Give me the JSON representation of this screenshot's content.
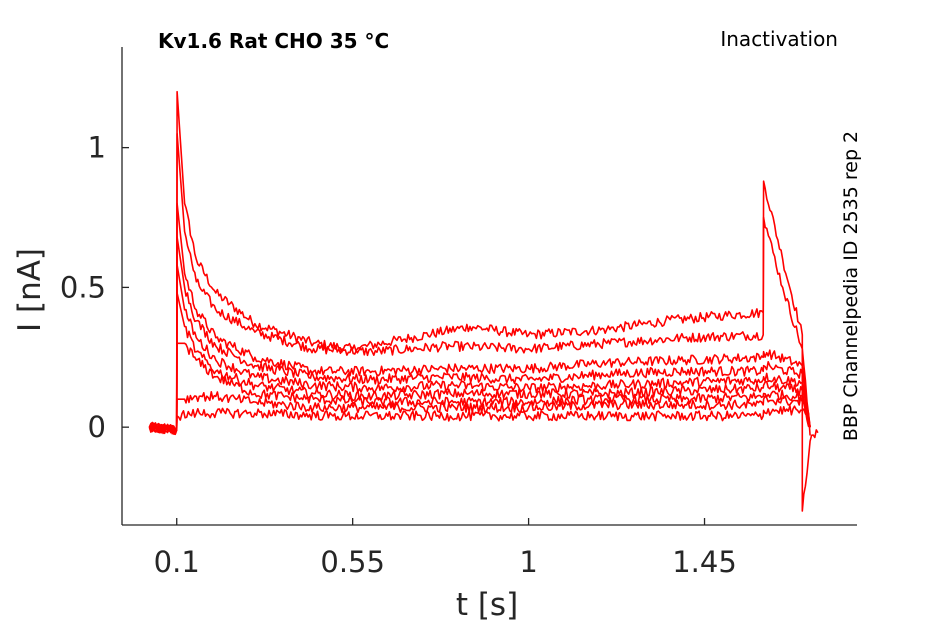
{
  "chart_data": {
    "type": "line",
    "title": "Kv1.6  Rat  CHO  35 °C",
    "protocol_label": "Inactivation",
    "side_label": "BBP Channelpedia ID 2535 rep 2",
    "xlabel": "t [s]",
    "ylabel": "I [nA]",
    "xlim": [
      -0.04,
      1.84
    ],
    "ylim": [
      -0.35,
      1.36
    ],
    "x_ticks": [
      0.1,
      0.55,
      1,
      1.45
    ],
    "x_tick_labels": [
      "0.1",
      "0.55",
      "1",
      "1.45"
    ],
    "y_ticks": [
      0,
      0.5,
      1
    ],
    "y_tick_labels": [
      "0",
      "0.5",
      "1"
    ],
    "grid": false,
    "line_color": "#ff0000",
    "series": [
      {
        "values": [
          [
            0.03,
            0
          ],
          [
            0.1,
            -0.01
          ],
          [
            0.101,
            1.2
          ],
          [
            0.12,
            0.8
          ],
          [
            0.15,
            0.6
          ],
          [
            0.2,
            0.48
          ],
          [
            0.3,
            0.37
          ],
          [
            0.45,
            0.3
          ],
          [
            0.55,
            0.28
          ],
          [
            0.7,
            0.32
          ],
          [
            0.85,
            0.36
          ],
          [
            1.0,
            0.33
          ],
          [
            1.2,
            0.35
          ],
          [
            1.35,
            0.38
          ],
          [
            1.5,
            0.4
          ],
          [
            1.6,
            0.41
          ],
          [
            1.601,
            0.88
          ],
          [
            1.65,
            0.6
          ],
          [
            1.7,
            0.33
          ],
          [
            1.7,
            -0.3
          ],
          [
            1.72,
            -0.05
          ],
          [
            1.74,
            -0.02
          ]
        ]
      },
      {
        "values": [
          [
            0.03,
            0
          ],
          [
            0.1,
            -0.01
          ],
          [
            0.101,
            1.05
          ],
          [
            0.12,
            0.7
          ],
          [
            0.15,
            0.52
          ],
          [
            0.2,
            0.42
          ],
          [
            0.3,
            0.34
          ],
          [
            0.45,
            0.28
          ],
          [
            0.6,
            0.27
          ],
          [
            0.8,
            0.29
          ],
          [
            1.0,
            0.28
          ],
          [
            1.2,
            0.3
          ],
          [
            1.4,
            0.32
          ],
          [
            1.6,
            0.33
          ],
          [
            1.601,
            0.75
          ],
          [
            1.65,
            0.5
          ],
          [
            1.7,
            0.28
          ],
          [
            1.72,
            -0.03
          ]
        ]
      },
      {
        "values": [
          [
            0.03,
            0
          ],
          [
            0.1,
            -0.01
          ],
          [
            0.101,
            0.8
          ],
          [
            0.12,
            0.55
          ],
          [
            0.15,
            0.42
          ],
          [
            0.2,
            0.32
          ],
          [
            0.3,
            0.25
          ],
          [
            0.45,
            0.2
          ],
          [
            0.6,
            0.2
          ],
          [
            0.8,
            0.21
          ],
          [
            1.0,
            0.21
          ],
          [
            1.2,
            0.23
          ],
          [
            1.4,
            0.24
          ],
          [
            1.6,
            0.25
          ],
          [
            1.601,
            0.27
          ],
          [
            1.7,
            0.22
          ],
          [
            1.72,
            0
          ]
        ]
      },
      {
        "values": [
          [
            0.03,
            0
          ],
          [
            0.1,
            -0.01
          ],
          [
            0.101,
            0.68
          ],
          [
            0.12,
            0.5
          ],
          [
            0.15,
            0.38
          ],
          [
            0.2,
            0.29
          ],
          [
            0.3,
            0.22
          ],
          [
            0.45,
            0.18
          ],
          [
            0.6,
            0.17
          ],
          [
            0.8,
            0.18
          ],
          [
            1.0,
            0.17
          ],
          [
            1.2,
            0.19
          ],
          [
            1.4,
            0.2
          ],
          [
            1.6,
            0.2
          ],
          [
            1.601,
            0.22
          ],
          [
            1.7,
            0.19
          ],
          [
            1.72,
            0
          ]
        ]
      },
      {
        "values": [
          [
            0.03,
            0
          ],
          [
            0.1,
            -0.01
          ],
          [
            0.101,
            0.58
          ],
          [
            0.12,
            0.42
          ],
          [
            0.15,
            0.32
          ],
          [
            0.2,
            0.24
          ],
          [
            0.3,
            0.18
          ],
          [
            0.45,
            0.15
          ],
          [
            0.6,
            0.14
          ],
          [
            0.8,
            0.15
          ],
          [
            1.0,
            0.14
          ],
          [
            1.2,
            0.15
          ],
          [
            1.4,
            0.16
          ],
          [
            1.6,
            0.17
          ],
          [
            1.601,
            0.18
          ],
          [
            1.7,
            0.16
          ],
          [
            1.72,
            0
          ]
        ]
      },
      {
        "values": [
          [
            0.03,
            0
          ],
          [
            0.1,
            -0.01
          ],
          [
            0.101,
            0.48
          ],
          [
            0.12,
            0.36
          ],
          [
            0.15,
            0.27
          ],
          [
            0.2,
            0.2
          ],
          [
            0.3,
            0.15
          ],
          [
            0.45,
            0.12
          ],
          [
            0.6,
            0.11
          ],
          [
            0.8,
            0.12
          ],
          [
            1.0,
            0.12
          ],
          [
            1.2,
            0.12
          ],
          [
            1.4,
            0.13
          ],
          [
            1.6,
            0.14
          ],
          [
            1.601,
            0.15
          ],
          [
            1.7,
            0.13
          ],
          [
            1.72,
            0
          ]
        ]
      },
      {
        "values": [
          [
            0.03,
            0
          ],
          [
            0.1,
            -0.01
          ],
          [
            0.101,
            0.3
          ],
          [
            0.12,
            0.3
          ],
          [
            0.15,
            0.24
          ],
          [
            0.2,
            0.18
          ],
          [
            0.3,
            0.12
          ],
          [
            0.45,
            0.1
          ],
          [
            0.6,
            0.09
          ],
          [
            0.8,
            0.09
          ],
          [
            1.0,
            0.09
          ],
          [
            1.2,
            0.1
          ],
          [
            1.4,
            0.1
          ],
          [
            1.6,
            0.11
          ],
          [
            1.601,
            0.12
          ],
          [
            1.7,
            0.11
          ],
          [
            1.72,
            0
          ]
        ]
      },
      {
        "values": [
          [
            0.03,
            0
          ],
          [
            0.1,
            -0.01
          ],
          [
            0.101,
            0.1
          ],
          [
            0.12,
            0.1
          ],
          [
            0.15,
            0.11
          ],
          [
            0.2,
            0.11
          ],
          [
            0.3,
            0.09
          ],
          [
            0.45,
            0.07
          ],
          [
            0.6,
            0.07
          ],
          [
            0.8,
            0.07
          ],
          [
            1.0,
            0.07
          ],
          [
            1.2,
            0.08
          ],
          [
            1.4,
            0.08
          ],
          [
            1.6,
            0.08
          ],
          [
            1.601,
            0.1
          ],
          [
            1.7,
            0.09
          ],
          [
            1.72,
            0
          ]
        ]
      },
      {
        "values": [
          [
            0.03,
            0
          ],
          [
            0.1,
            -0.01
          ],
          [
            0.101,
            0.04
          ],
          [
            0.15,
            0.05
          ],
          [
            0.3,
            0.05
          ],
          [
            0.5,
            0.04
          ],
          [
            0.8,
            0.04
          ],
          [
            1.0,
            0.04
          ],
          [
            1.2,
            0.04
          ],
          [
            1.4,
            0.04
          ],
          [
            1.6,
            0.04
          ],
          [
            1.601,
            0.06
          ],
          [
            1.7,
            0.06
          ],
          [
            1.72,
            0
          ]
        ]
      }
    ]
  }
}
